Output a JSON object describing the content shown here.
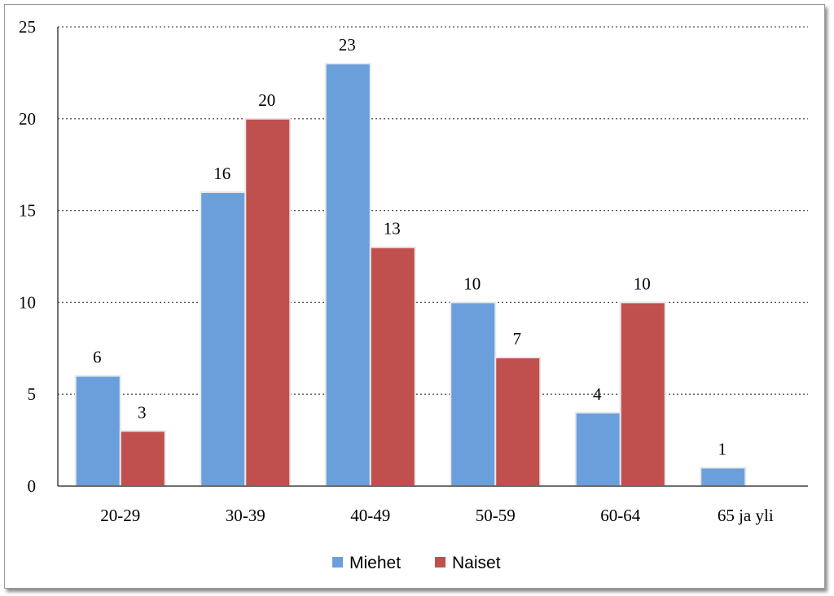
{
  "chart_data": {
    "type": "bar",
    "categories": [
      "20-29",
      "30-39",
      "40-49",
      "50-59",
      "60-64",
      "65 ja yli"
    ],
    "series": [
      {
        "name": "Miehet",
        "values": [
          6,
          16,
          23,
          10,
          4,
          1
        ],
        "color": "#6a9fdb"
      },
      {
        "name": "Naiset",
        "values": [
          3,
          20,
          13,
          7,
          10,
          null
        ],
        "color": "#c0504d"
      }
    ],
    "ylim": [
      0,
      25
    ],
    "yticks": [
      0,
      5,
      10,
      15,
      20,
      25
    ],
    "grid": "dotted horizontal",
    "legend": "bottom-center"
  }
}
